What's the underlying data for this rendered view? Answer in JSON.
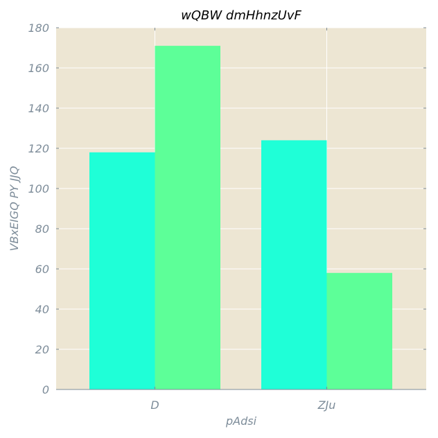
{
  "chart_data": {
    "type": "bar",
    "title": "wQBW dmHhnzUvF",
    "xlabel": "pAdsi",
    "ylabel": "VBxEIGQ PY JJQ",
    "categories": [
      "D",
      "ZJu"
    ],
    "series": [
      {
        "values": [
          118,
          124
        ],
        "color": "#1fffd7"
      },
      {
        "values": [
          171,
          58
        ],
        "color": "#5dff98"
      }
    ],
    "ylim": [
      0,
      180
    ],
    "yticks": [
      0,
      20,
      40,
      60,
      80,
      100,
      120,
      140,
      160,
      180
    ],
    "grid": true,
    "legend": "none",
    "colors": {
      "plot_background": "#ede6d3",
      "grid": "#ffffff",
      "tick_text": "#7d8c99",
      "axis_line": "#7d8c99"
    }
  }
}
